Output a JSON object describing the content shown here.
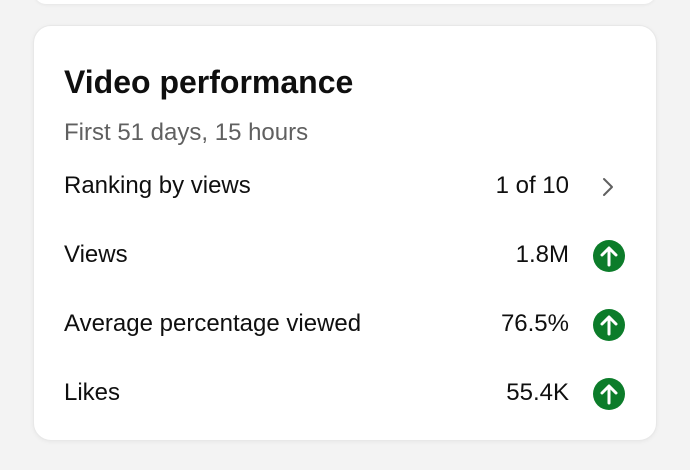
{
  "card": {
    "title": "Video performance",
    "subtitle": "First 51 days, 15 hours"
  },
  "rows": [
    {
      "label": "Ranking by views",
      "value": "1 of 10",
      "indicator": "chevron-right-icon"
    },
    {
      "label": "Views",
      "value": "1.8M",
      "indicator": "arrow-up-circle-icon"
    },
    {
      "label": "Average percentage viewed",
      "value": "76.5%",
      "indicator": "arrow-up-circle-icon"
    },
    {
      "label": "Likes",
      "value": "55.4K",
      "indicator": "arrow-up-circle-icon"
    }
  ],
  "colors": {
    "up_badge": "#0c7c2a",
    "text_primary": "#0f0f0f",
    "text_secondary": "#606060"
  }
}
